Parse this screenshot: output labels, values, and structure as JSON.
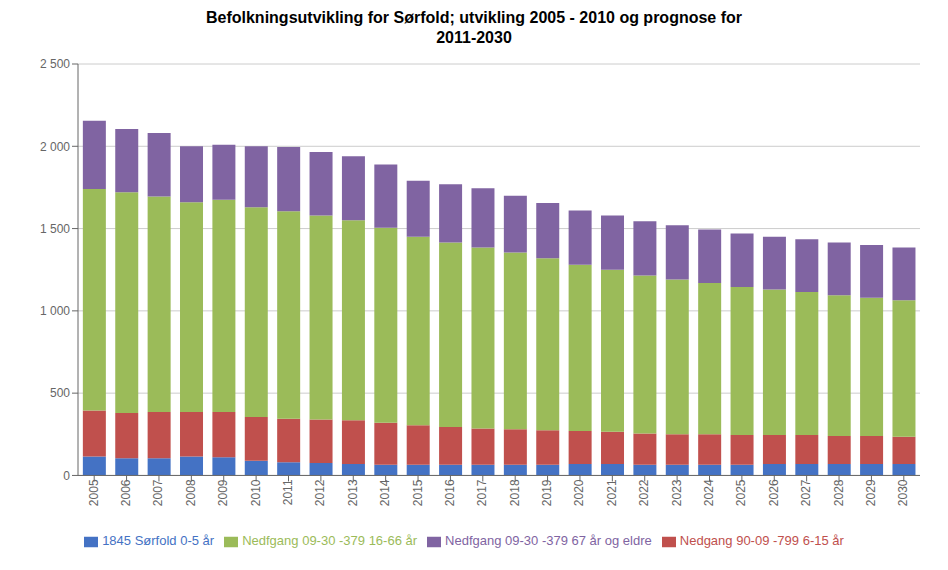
{
  "chart_data": {
    "type": "bar",
    "title": "Befolkningsutvikling for Sørfold; utvikling 2005 - 2010 og prognose for\n2011-2030",
    "categories": [
      "2005",
      "2006",
      "2007",
      "2008",
      "2009",
      "2010",
      "2011",
      "2012",
      "2013",
      "2014",
      "2015",
      "2016",
      "2017",
      "2018",
      "2019",
      "2020",
      "2021",
      "2022",
      "2023",
      "2024",
      "2025",
      "2026",
      "2027",
      "2028",
      "2029",
      "2030"
    ],
    "series": [
      {
        "name": "1845 Sørfold 0-5 år",
        "color": "#4472C4",
        "values": [
          115,
          105,
          105,
          115,
          110,
          90,
          80,
          75,
          70,
          65,
          65,
          65,
          65,
          65,
          65,
          70,
          70,
          65,
          65,
          65,
          65,
          70,
          70,
          70,
          70,
          70
        ]
      },
      {
        "name": "Nedgang 90-09 -799 6-15 år",
        "color": "#C0504D",
        "values": [
          280,
          275,
          280,
          270,
          275,
          265,
          265,
          265,
          265,
          255,
          240,
          230,
          220,
          215,
          210,
          200,
          195,
          190,
          185,
          185,
          180,
          175,
          175,
          170,
          170,
          165
        ]
      },
      {
        "name": "Nedfgang 09-30 -379 16-66 år",
        "color": "#9BBB59",
        "values": [
          1345,
          1340,
          1310,
          1275,
          1290,
          1275,
          1260,
          1240,
          1215,
          1185,
          1145,
          1120,
          1100,
          1075,
          1045,
          1010,
          985,
          960,
          940,
          920,
          900,
          885,
          870,
          855,
          840,
          830
        ]
      },
      {
        "name": "Nedfgang 09-30 -379 67 år og eldre",
        "color": "#8064A2",
        "values": [
          415,
          385,
          385,
          340,
          335,
          370,
          390,
          385,
          390,
          385,
          340,
          355,
          360,
          345,
          335,
          330,
          330,
          330,
          330,
          325,
          325,
          320,
          320,
          320,
          320,
          320
        ]
      }
    ],
    "ylim": [
      0,
      2500
    ],
    "yticks": [
      0,
      500,
      {
        "value": 1000,
        "label": "1 000"
      },
      {
        "value": 1500,
        "label": "1 500"
      },
      {
        "value": 2000,
        "label": "2 000"
      },
      {
        "value": 2500,
        "label": "2 500"
      }
    ],
    "grid": true,
    "stacked": true,
    "legend": "bottom"
  }
}
